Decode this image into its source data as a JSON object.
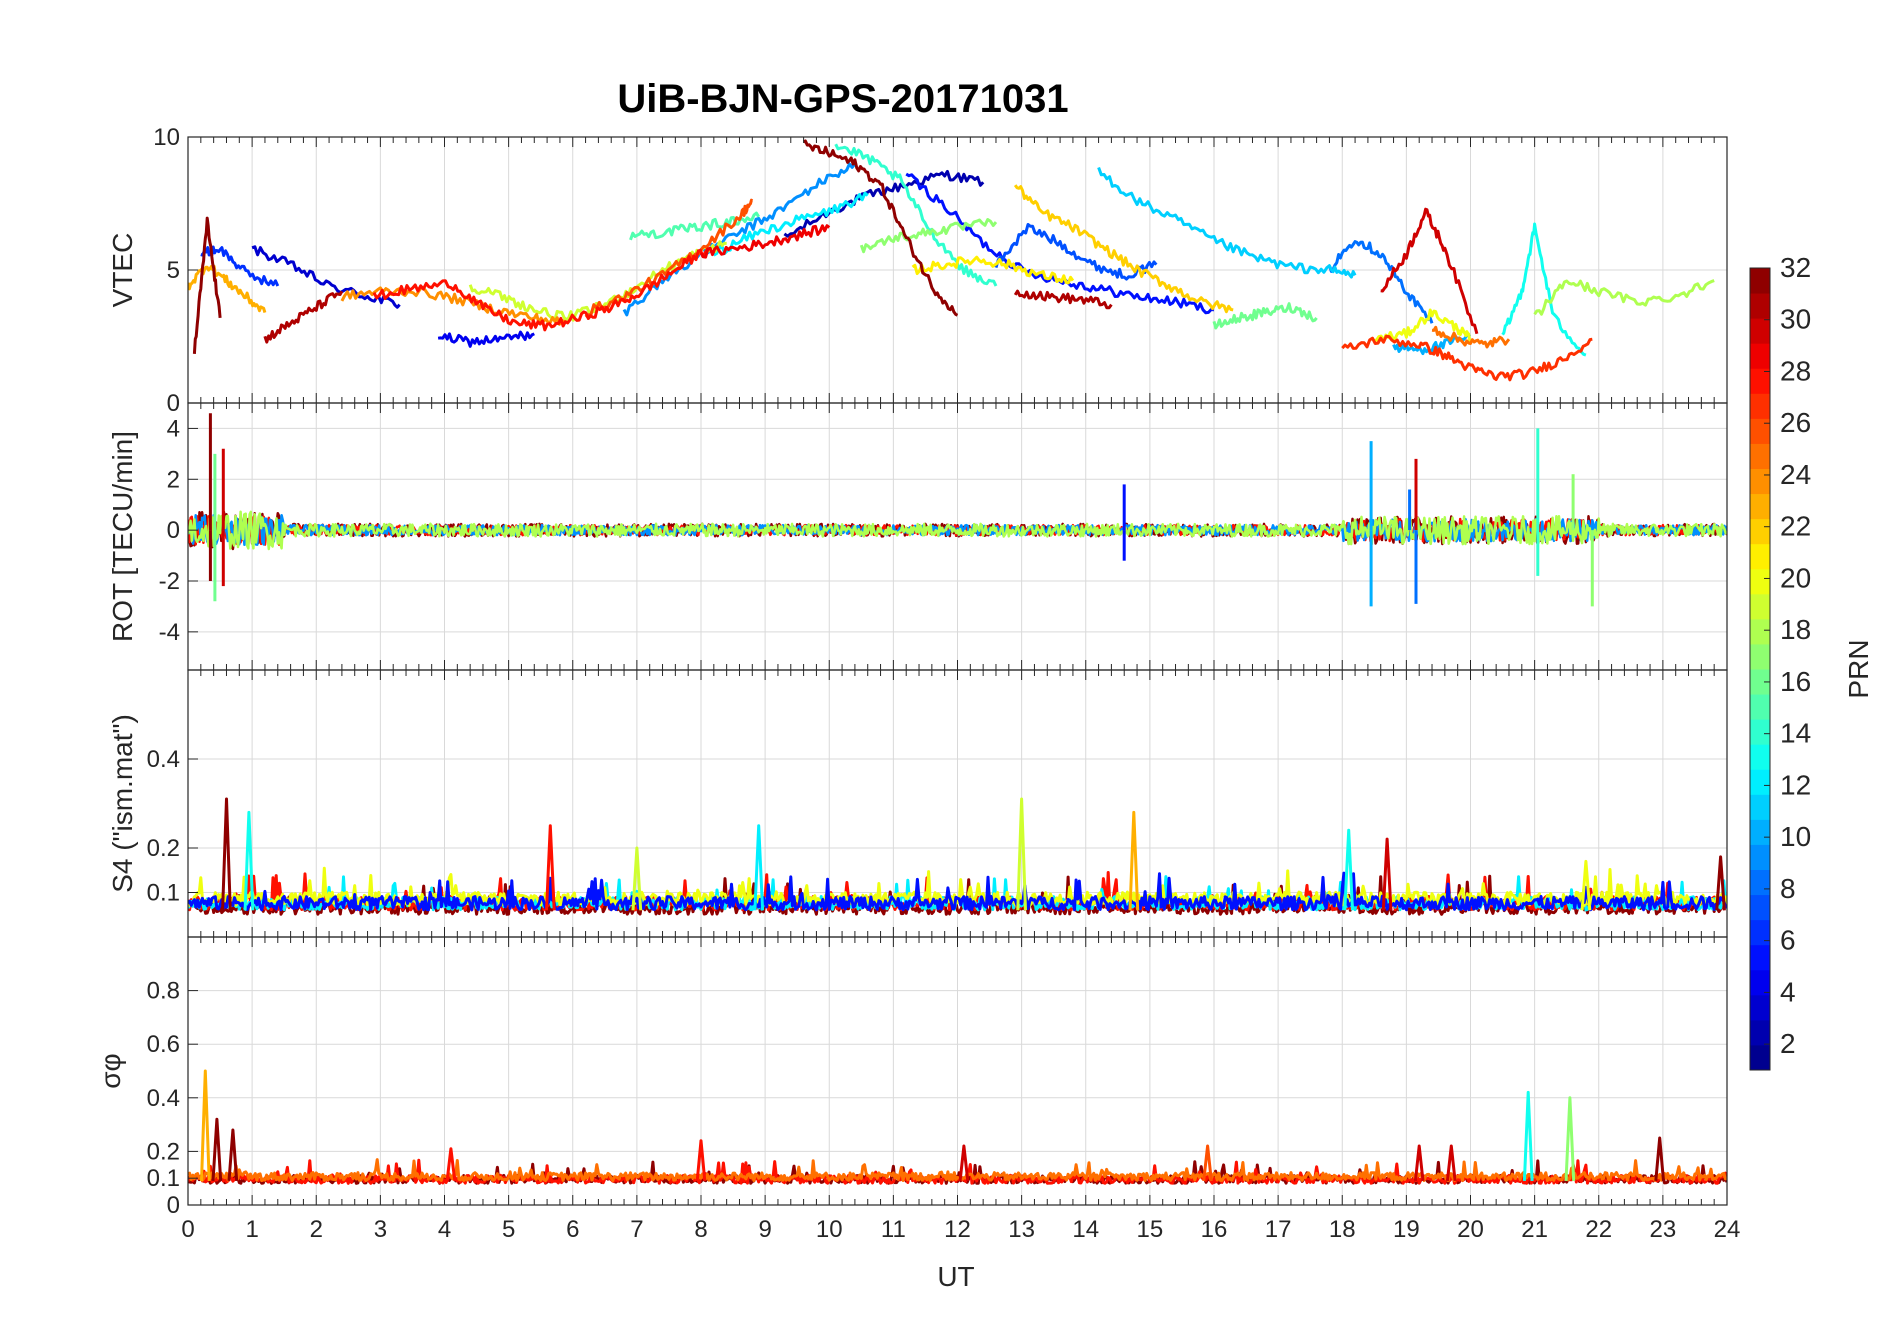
{
  "chart_data": {
    "type": "line",
    "title": "UiB-BJN-GPS-20171031",
    "xlabel": "UT",
    "xlim": [
      0,
      24
    ],
    "xticks": [
      "0",
      "1",
      "2",
      "3",
      "4",
      "5",
      "6",
      "7",
      "8",
      "9",
      "10",
      "11",
      "12",
      "13",
      "14",
      "15",
      "16",
      "17",
      "18",
      "19",
      "20",
      "21",
      "22",
      "23",
      "24"
    ],
    "grid": true,
    "colorbar": {
      "label": "PRN",
      "range": [
        1,
        32
      ],
      "ticks": [
        "2",
        "4",
        "6",
        "8",
        "10",
        "12",
        "14",
        "16",
        "18",
        "20",
        "22",
        "24",
        "26",
        "28",
        "30",
        "32"
      ],
      "colormap": "jet",
      "placement": "right"
    },
    "panels": [
      {
        "ylabel": "VTEC",
        "ylim": [
          0,
          10
        ],
        "yticks": [
          "0",
          "5",
          "10"
        ],
        "series": [
          {
            "prn": 2,
            "x": [
              9.3,
              10,
              10.6,
              11.2,
              11.8,
              12.4
            ],
            "y": [
              6.2,
              7.2,
              7.8,
              8.2,
              8.6,
              8.3
            ]
          },
          {
            "prn": 3,
            "x": [
              1.0,
              1.6,
              2.2,
              2.8,
              3.3
            ],
            "y": [
              5.8,
              5.2,
              4.4,
              4.0,
              3.7
            ]
          },
          {
            "prn": 4,
            "x": [
              3.9,
              4.4,
              4.9,
              5.4
            ],
            "y": [
              2.5,
              2.3,
              2.4,
              2.6
            ]
          },
          {
            "prn": 5,
            "x": [
              11.2,
              11.8,
              12.4,
              13.0,
              13.6,
              14.2,
              14.8,
              15.4,
              16.0
            ],
            "y": [
              8.6,
              7.4,
              6.0,
              5.0,
              4.6,
              4.3,
              4.0,
              3.8,
              3.5
            ]
          },
          {
            "prn": 6,
            "x": [
              0.2,
              0.5,
              0.9,
              1.4
            ],
            "y": [
              5.6,
              5.8,
              4.9,
              4.4
            ]
          },
          {
            "prn": 7,
            "x": [
              12.6,
              13.1,
              13.6,
              14.1,
              14.6,
              15.1
            ],
            "y": [
              5.2,
              6.6,
              6.0,
              5.2,
              4.8,
              5.2
            ]
          },
          {
            "prn": 8,
            "x": [
              17.8,
              18.2,
              18.6,
              19.0,
              19.4
            ],
            "y": [
              5.0,
              6.2,
              5.6,
              4.2,
              3.0
            ]
          },
          {
            "prn": 9,
            "x": [
              6.8,
              7.4,
              8.0,
              8.6,
              9.2,
              9.8,
              10.4
            ],
            "y": [
              3.4,
              4.6,
              5.6,
              6.4,
              7.2,
              8.2,
              9.0
            ]
          },
          {
            "prn": 10,
            "x": [
              18.8,
              19.2,
              19.6,
              20.0
            ],
            "y": [
              2.1,
              2.0,
              2.2,
              2.5
            ]
          },
          {
            "prn": 11,
            "x": [
              14.2,
              14.8,
              15.4,
              16.0,
              16.6,
              17.2,
              17.8,
              18.2
            ],
            "y": [
              8.7,
              7.6,
              6.9,
              6.1,
              5.5,
              5.1,
              5.0,
              4.8
            ]
          },
          {
            "prn": 12,
            "x": [
              8.2,
              8.8,
              9.4,
              10.0,
              10.6
            ],
            "y": [
              5.6,
              6.3,
              6.8,
              7.2,
              7.8
            ]
          },
          {
            "prn": 13,
            "x": [
              20.5,
              20.8,
              21.0,
              21.3,
              21.8
            ],
            "y": [
              2.5,
              4.2,
              6.6,
              3.2,
              1.8
            ]
          },
          {
            "prn": 14,
            "x": [
              10.1,
              10.6,
              11.1,
              11.6,
              12.1,
              12.6
            ],
            "y": [
              9.7,
              9.2,
              8.4,
              6.4,
              5.0,
              4.4
            ]
          },
          {
            "prn": 15,
            "x": [
              6.9,
              7.4,
              7.9,
              8.4,
              8.9
            ],
            "y": [
              6.3,
              6.4,
              6.6,
              6.8,
              7.0
            ]
          },
          {
            "prn": 16,
            "x": [
              16.0,
              16.4,
              16.8,
              17.2,
              17.6
            ],
            "y": [
              2.9,
              3.2,
              3.4,
              3.6,
              3.2
            ]
          },
          {
            "prn": 17,
            "x": [
              10.5,
              11.0,
              11.5,
              12.0,
              12.6
            ],
            "y": [
              5.8,
              6.2,
              6.4,
              6.6,
              6.8
            ]
          },
          {
            "prn": 18,
            "x": [
              21.0,
              21.5,
              22.0,
              22.6,
              23.2,
              23.8
            ],
            "y": [
              3.2,
              4.6,
              4.2,
              3.8,
              4.0,
              4.6
            ]
          },
          {
            "prn": 19,
            "x": [
              4.4,
              4.9,
              5.4,
              5.9,
              6.4,
              6.9,
              7.4,
              7.9,
              8.4
            ],
            "y": [
              4.4,
              4.0,
              3.5,
              3.2,
              3.6,
              4.2,
              5.0,
              5.6,
              6.0
            ]
          },
          {
            "prn": 20,
            "x": [
              18.5,
              19.0,
              19.4,
              19.8,
              20.0
            ],
            "y": [
              2.4,
              2.6,
              3.4,
              2.8,
              2.4
            ]
          },
          {
            "prn": 21,
            "x": [
              11.3,
              11.8,
              12.3,
              12.8,
              13.3,
              13.8
            ],
            "y": [
              5.0,
              5.2,
              5.4,
              5.2,
              4.8,
              4.6
            ]
          },
          {
            "prn": 22,
            "x": [
              12.9,
              13.3,
              13.8,
              14.3,
              14.8,
              15.3,
              15.8,
              16.3
            ],
            "y": [
              8.2,
              7.2,
              6.6,
              5.8,
              5.0,
              4.4,
              3.8,
              3.5
            ]
          },
          {
            "prn": 23,
            "x": [
              0.0,
              0.3,
              0.6,
              0.9,
              1.2
            ],
            "y": [
              4.4,
              5.2,
              4.6,
              4.0,
              3.4
            ]
          },
          {
            "prn": 24,
            "x": [
              2.4,
              3.0,
              3.6,
              4.2,
              4.8,
              5.4,
              5.9
            ],
            "y": [
              4.0,
              4.2,
              4.2,
              3.9,
              3.5,
              3.2,
              3.0
            ]
          },
          {
            "prn": 25,
            "x": [
              19.4,
              19.8,
              20.2,
              20.6
            ],
            "y": [
              2.8,
              2.4,
              2.2,
              2.4
            ]
          },
          {
            "prn": 26,
            "x": [
              6.2,
              6.8,
              7.4,
              8.0,
              8.6,
              8.8
            ],
            "y": [
              3.4,
              4.0,
              4.8,
              5.8,
              7.0,
              7.6
            ]
          },
          {
            "prn": 27,
            "x": [
              18.0,
              18.6,
              19.2,
              19.6,
              20.0,
              20.4,
              20.9,
              21.4,
              21.9
            ],
            "y": [
              2.0,
              2.4,
              2.2,
              1.8,
              1.3,
              1.0,
              1.1,
              1.6,
              2.4
            ]
          },
          {
            "prn": 28,
            "x": [
              2.9,
              3.5,
              4.1,
              4.6,
              5.1,
              5.6,
              6.1,
              6.6,
              7.1,
              7.6,
              8.1
            ],
            "y": [
              4.0,
              4.3,
              4.5,
              3.6,
              3.0,
              2.9,
              3.2,
              3.6,
              4.2,
              5.0,
              5.8
            ]
          },
          {
            "prn": 29,
            "x": [
              8.0,
              8.5,
              9.0,
              9.5,
              10.0
            ],
            "y": [
              5.6,
              5.8,
              6.0,
              6.3,
              6.6
            ]
          },
          {
            "prn": 30,
            "x": [
              18.6,
              19.0,
              19.3,
              19.6,
              20.1
            ],
            "y": [
              4.2,
              5.6,
              7.2,
              5.8,
              2.6
            ]
          },
          {
            "prn": 31,
            "x": [
              12.9,
              13.4,
              13.9,
              14.4
            ],
            "y": [
              4.2,
              4.0,
              3.9,
              3.7
            ]
          },
          {
            "prn": 32,
            "x": [
              9.6,
              10.0,
              10.4,
              10.8,
              11.2,
              11.6,
              12.0
            ],
            "y": [
              9.7,
              9.4,
              9.0,
              8.2,
              6.2,
              4.4,
              3.3
            ]
          },
          {
            "prn": 31,
            "x": [
              1.2,
              1.6,
              2.0,
              2.4
            ],
            "y": [
              2.4,
              3.0,
              3.6,
              4.2
            ]
          },
          {
            "prn": 32,
            "x": [
              0.1,
              0.3,
              0.5
            ],
            "y": [
              1.9,
              6.8,
              3.2
            ]
          }
        ]
      },
      {
        "ylabel": "ROT [TECU/min]",
        "ylim": [
          -5.5,
          5.0
        ],
        "yticks": [
          "-4",
          "-2",
          "0",
          "2",
          "4"
        ],
        "series": [
          {
            "prn": 32,
            "noise": 0.25
          },
          {
            "prn": 28,
            "noise": 0.2
          },
          {
            "prn": 9,
            "noise": 0.2
          },
          {
            "prn": 18,
            "noise": 0.25
          }
        ],
        "spikes": [
          {
            "prn": 32,
            "x": 0.35,
            "y": 4.6
          },
          {
            "prn": 32,
            "x": 0.35,
            "y": -2.0
          },
          {
            "prn": 30,
            "x": 0.55,
            "y": 3.2
          },
          {
            "prn": 30,
            "x": 0.55,
            "y": -2.2
          },
          {
            "prn": 16,
            "x": 0.42,
            "y": -2.8
          },
          {
            "prn": 16,
            "x": 0.42,
            "y": 3.0
          },
          {
            "prn": 10,
            "x": 18.45,
            "y": 3.5
          },
          {
            "prn": 10,
            "x": 18.45,
            "y": -3.0
          },
          {
            "prn": 30,
            "x": 19.15,
            "y": 2.8
          },
          {
            "prn": 8,
            "x": 19.15,
            "y": -2.9
          },
          {
            "prn": 14,
            "x": 21.05,
            "y": 4.0
          },
          {
            "prn": 14,
            "x": 21.05,
            "y": -1.8
          },
          {
            "prn": 17,
            "x": 21.9,
            "y": -3.0
          },
          {
            "prn": 17,
            "x": 21.6,
            "y": 2.2
          },
          {
            "prn": 5,
            "x": 14.6,
            "y": 1.8
          },
          {
            "prn": 5,
            "x": 14.6,
            "y": -1.2
          },
          {
            "prn": 8,
            "x": 19.05,
            "y": 1.6
          }
        ]
      },
      {
        "ylabel": "S4 (\"ism.mat\")",
        "ylim": [
          0,
          0.6
        ],
        "yticks": [
          "0.1",
          "0.2",
          "0.4"
        ],
        "series": [
          {
            "prn": 32,
            "base": 0.06
          },
          {
            "prn": 28,
            "base": 0.07
          },
          {
            "prn": 12,
            "base": 0.07
          },
          {
            "prn": 20,
            "base": 0.08
          },
          {
            "prn": 5,
            "base": 0.07
          }
        ],
        "spikes": [
          {
            "prn": 32,
            "x": 0.6,
            "y": 0.31
          },
          {
            "prn": 13,
            "x": 0.95,
            "y": 0.28
          },
          {
            "prn": 28,
            "x": 5.65,
            "y": 0.25
          },
          {
            "prn": 19,
            "x": 7.0,
            "y": 0.2
          },
          {
            "prn": 12,
            "x": 8.9,
            "y": 0.25
          },
          {
            "prn": 19,
            "x": 13.0,
            "y": 0.31
          },
          {
            "prn": 23,
            "x": 14.75,
            "y": 0.28
          },
          {
            "prn": 13,
            "x": 18.1,
            "y": 0.24
          },
          {
            "prn": 30,
            "x": 18.7,
            "y": 0.22
          },
          {
            "prn": 20,
            "x": 21.8,
            "y": 0.17
          },
          {
            "prn": 32,
            "x": 23.9,
            "y": 0.18
          }
        ]
      },
      {
        "ylabel": "σφ",
        "ylim": [
          0,
          1
        ],
        "yticks": [
          "0",
          "0.1",
          "0.2",
          "0.4",
          "0.6",
          "0.8"
        ],
        "series": [
          {
            "prn": 32,
            "base": 0.09
          },
          {
            "prn": 28,
            "base": 0.09
          },
          {
            "prn": 25,
            "base": 0.1
          }
        ],
        "spikes": [
          {
            "prn": 23,
            "x": 0.27,
            "y": 0.5
          },
          {
            "prn": 32,
            "x": 0.45,
            "y": 0.32
          },
          {
            "prn": 32,
            "x": 0.7,
            "y": 0.28
          },
          {
            "prn": 13,
            "x": 20.9,
            "y": 0.42
          },
          {
            "prn": 17,
            "x": 21.55,
            "y": 0.4
          },
          {
            "prn": 32,
            "x": 22.95,
            "y": 0.25
          },
          {
            "prn": 26,
            "x": 15.9,
            "y": 0.22
          },
          {
            "prn": 28,
            "x": 4.1,
            "y": 0.21
          },
          {
            "prn": 28,
            "x": 8.0,
            "y": 0.24
          },
          {
            "prn": 30,
            "x": 12.1,
            "y": 0.22
          },
          {
            "prn": 30,
            "x": 19.2,
            "y": 0.22
          },
          {
            "prn": 30,
            "x": 19.7,
            "y": 0.22
          }
        ]
      }
    ]
  }
}
